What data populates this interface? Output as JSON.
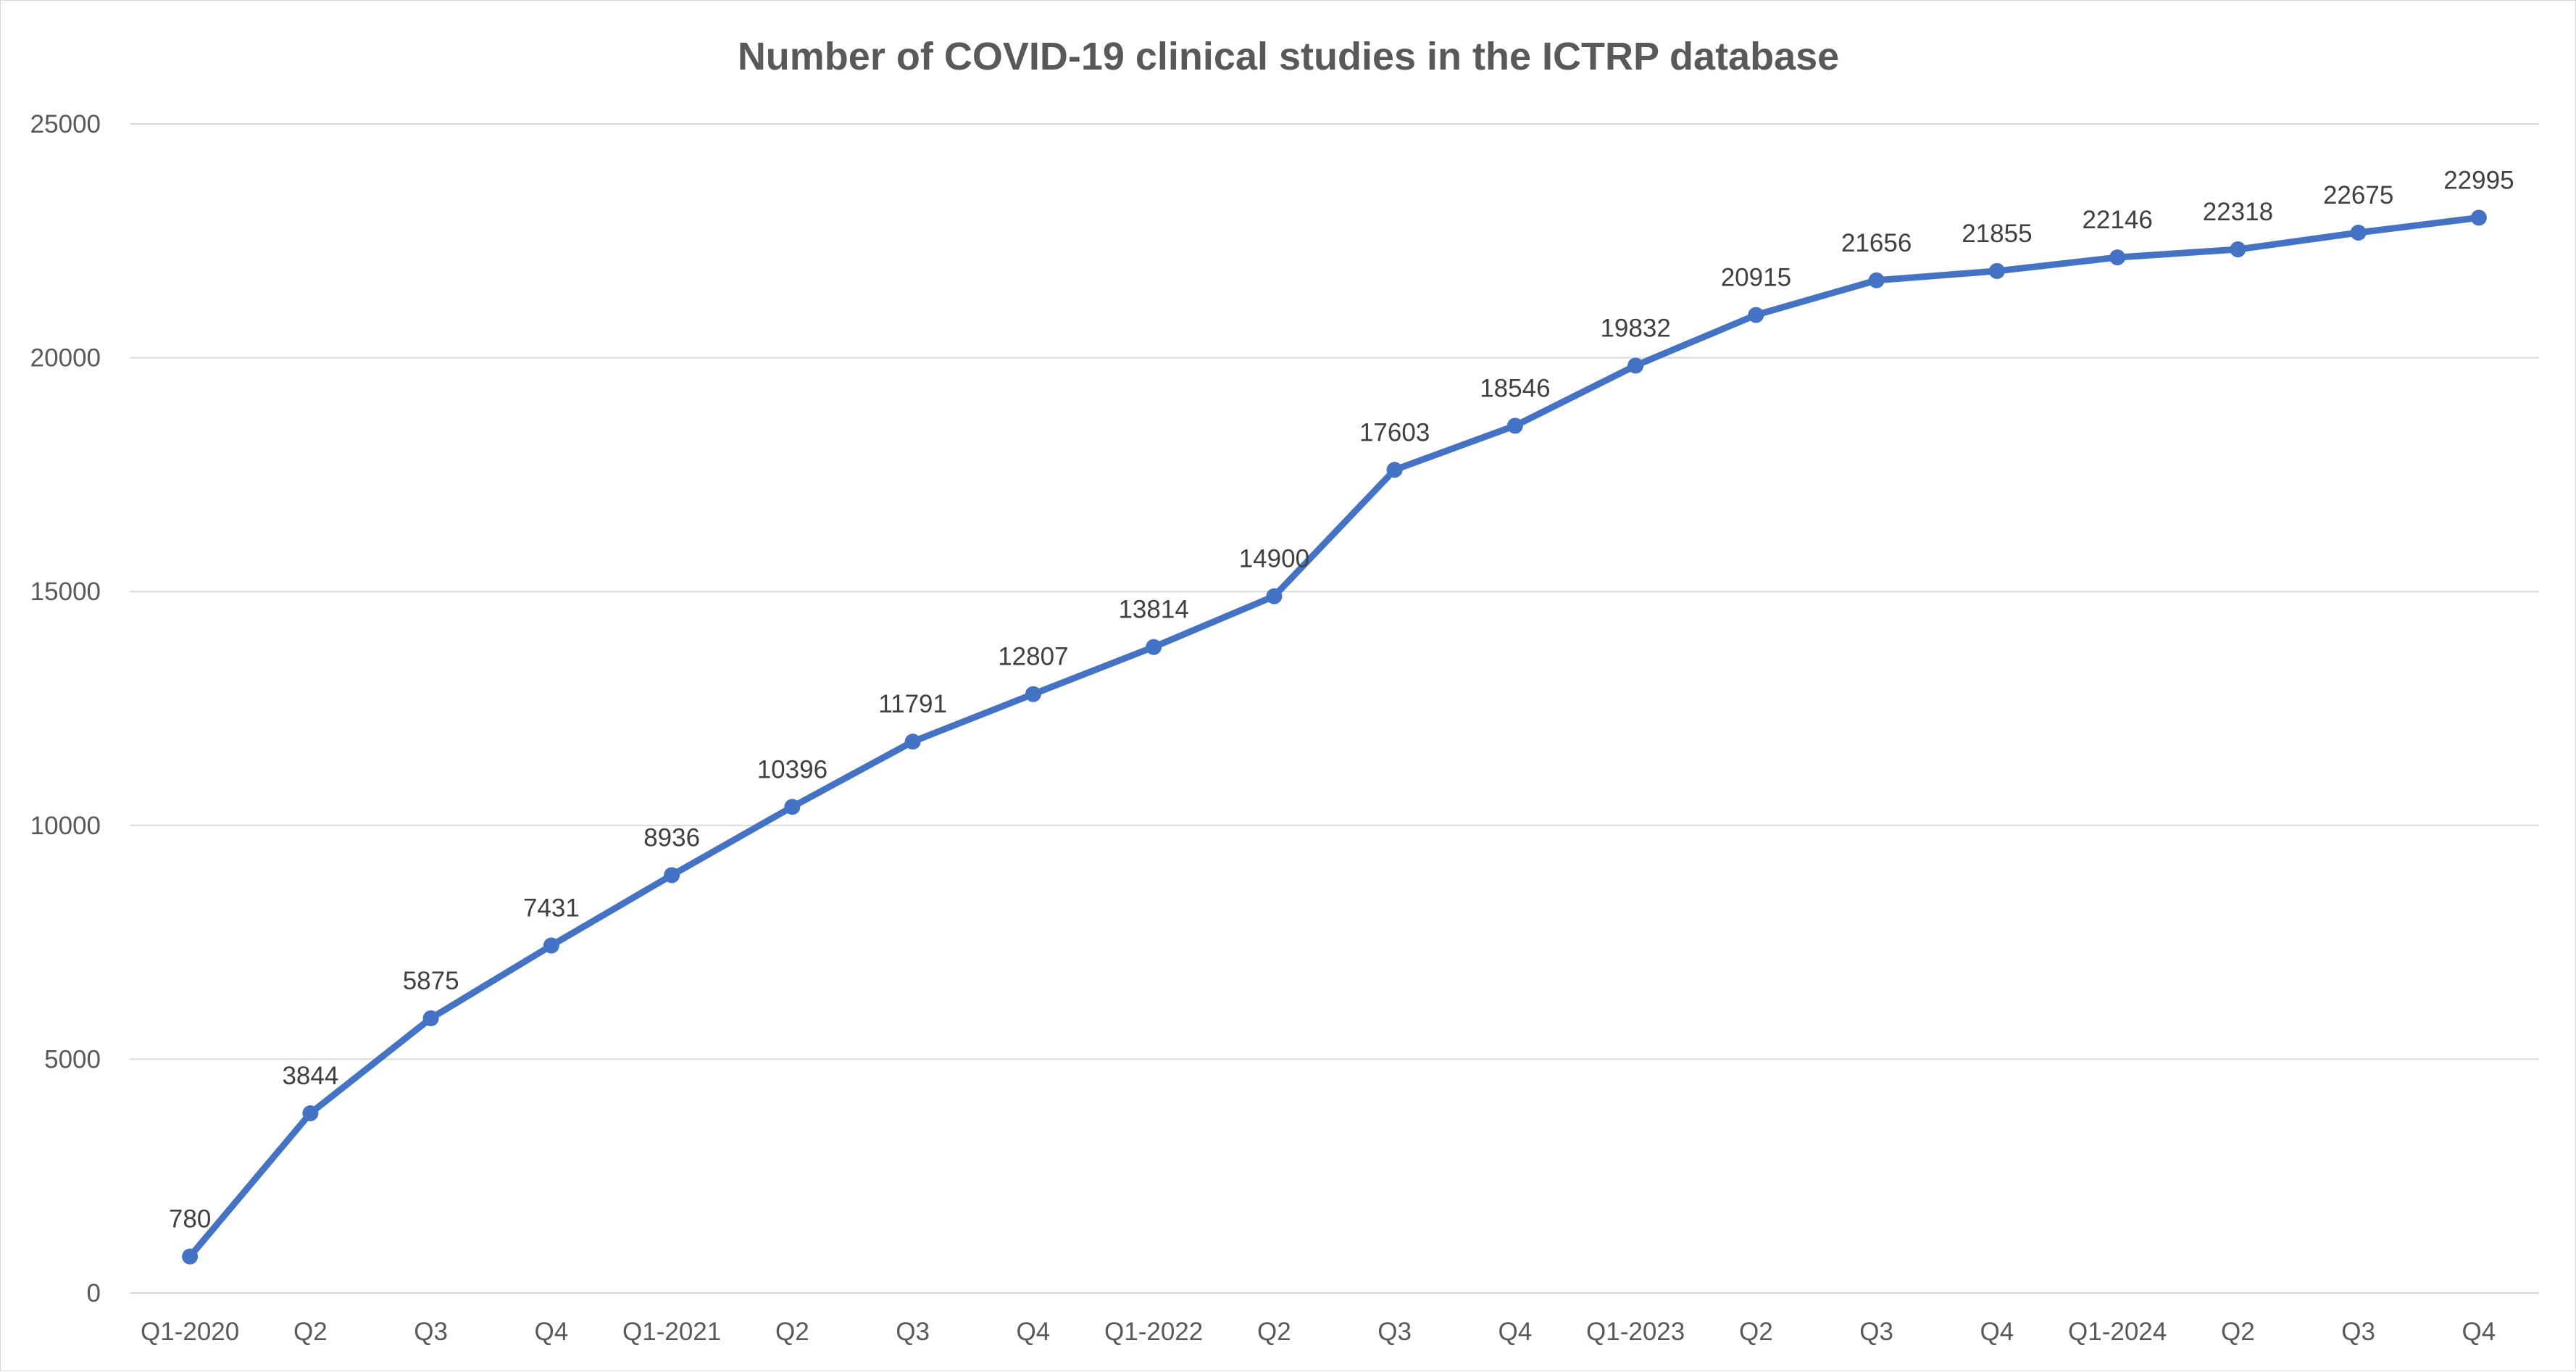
{
  "chart_data": {
    "type": "line",
    "title": "Number of COVID-19 clinical studies in the ICTRP database",
    "xlabel": "",
    "ylabel": "",
    "categories": [
      "Q1-2020",
      "Q2",
      "Q3",
      "Q4",
      "Q1-2021",
      "Q2",
      "Q3",
      "Q4",
      "Q1-2022",
      "Q2",
      "Q3",
      "Q4",
      "Q1-2023",
      "Q2",
      "Q3",
      "Q4",
      "Q1-2024",
      "Q2",
      "Q3",
      "Q4"
    ],
    "series": [
      {
        "values": [
          780,
          3844,
          5875,
          7431,
          8936,
          10396,
          11791,
          12807,
          13814,
          14900,
          17603,
          18546,
          19832,
          20915,
          21656,
          21855,
          22146,
          22318,
          22675,
          22995
        ],
        "color": "#4472c4"
      }
    ],
    "ylim": [
      0,
      25000
    ],
    "yticks": [
      0,
      5000,
      10000,
      15000,
      20000,
      25000
    ],
    "grid": true,
    "legend": "none",
    "data_labels": true,
    "marker": "circle"
  }
}
